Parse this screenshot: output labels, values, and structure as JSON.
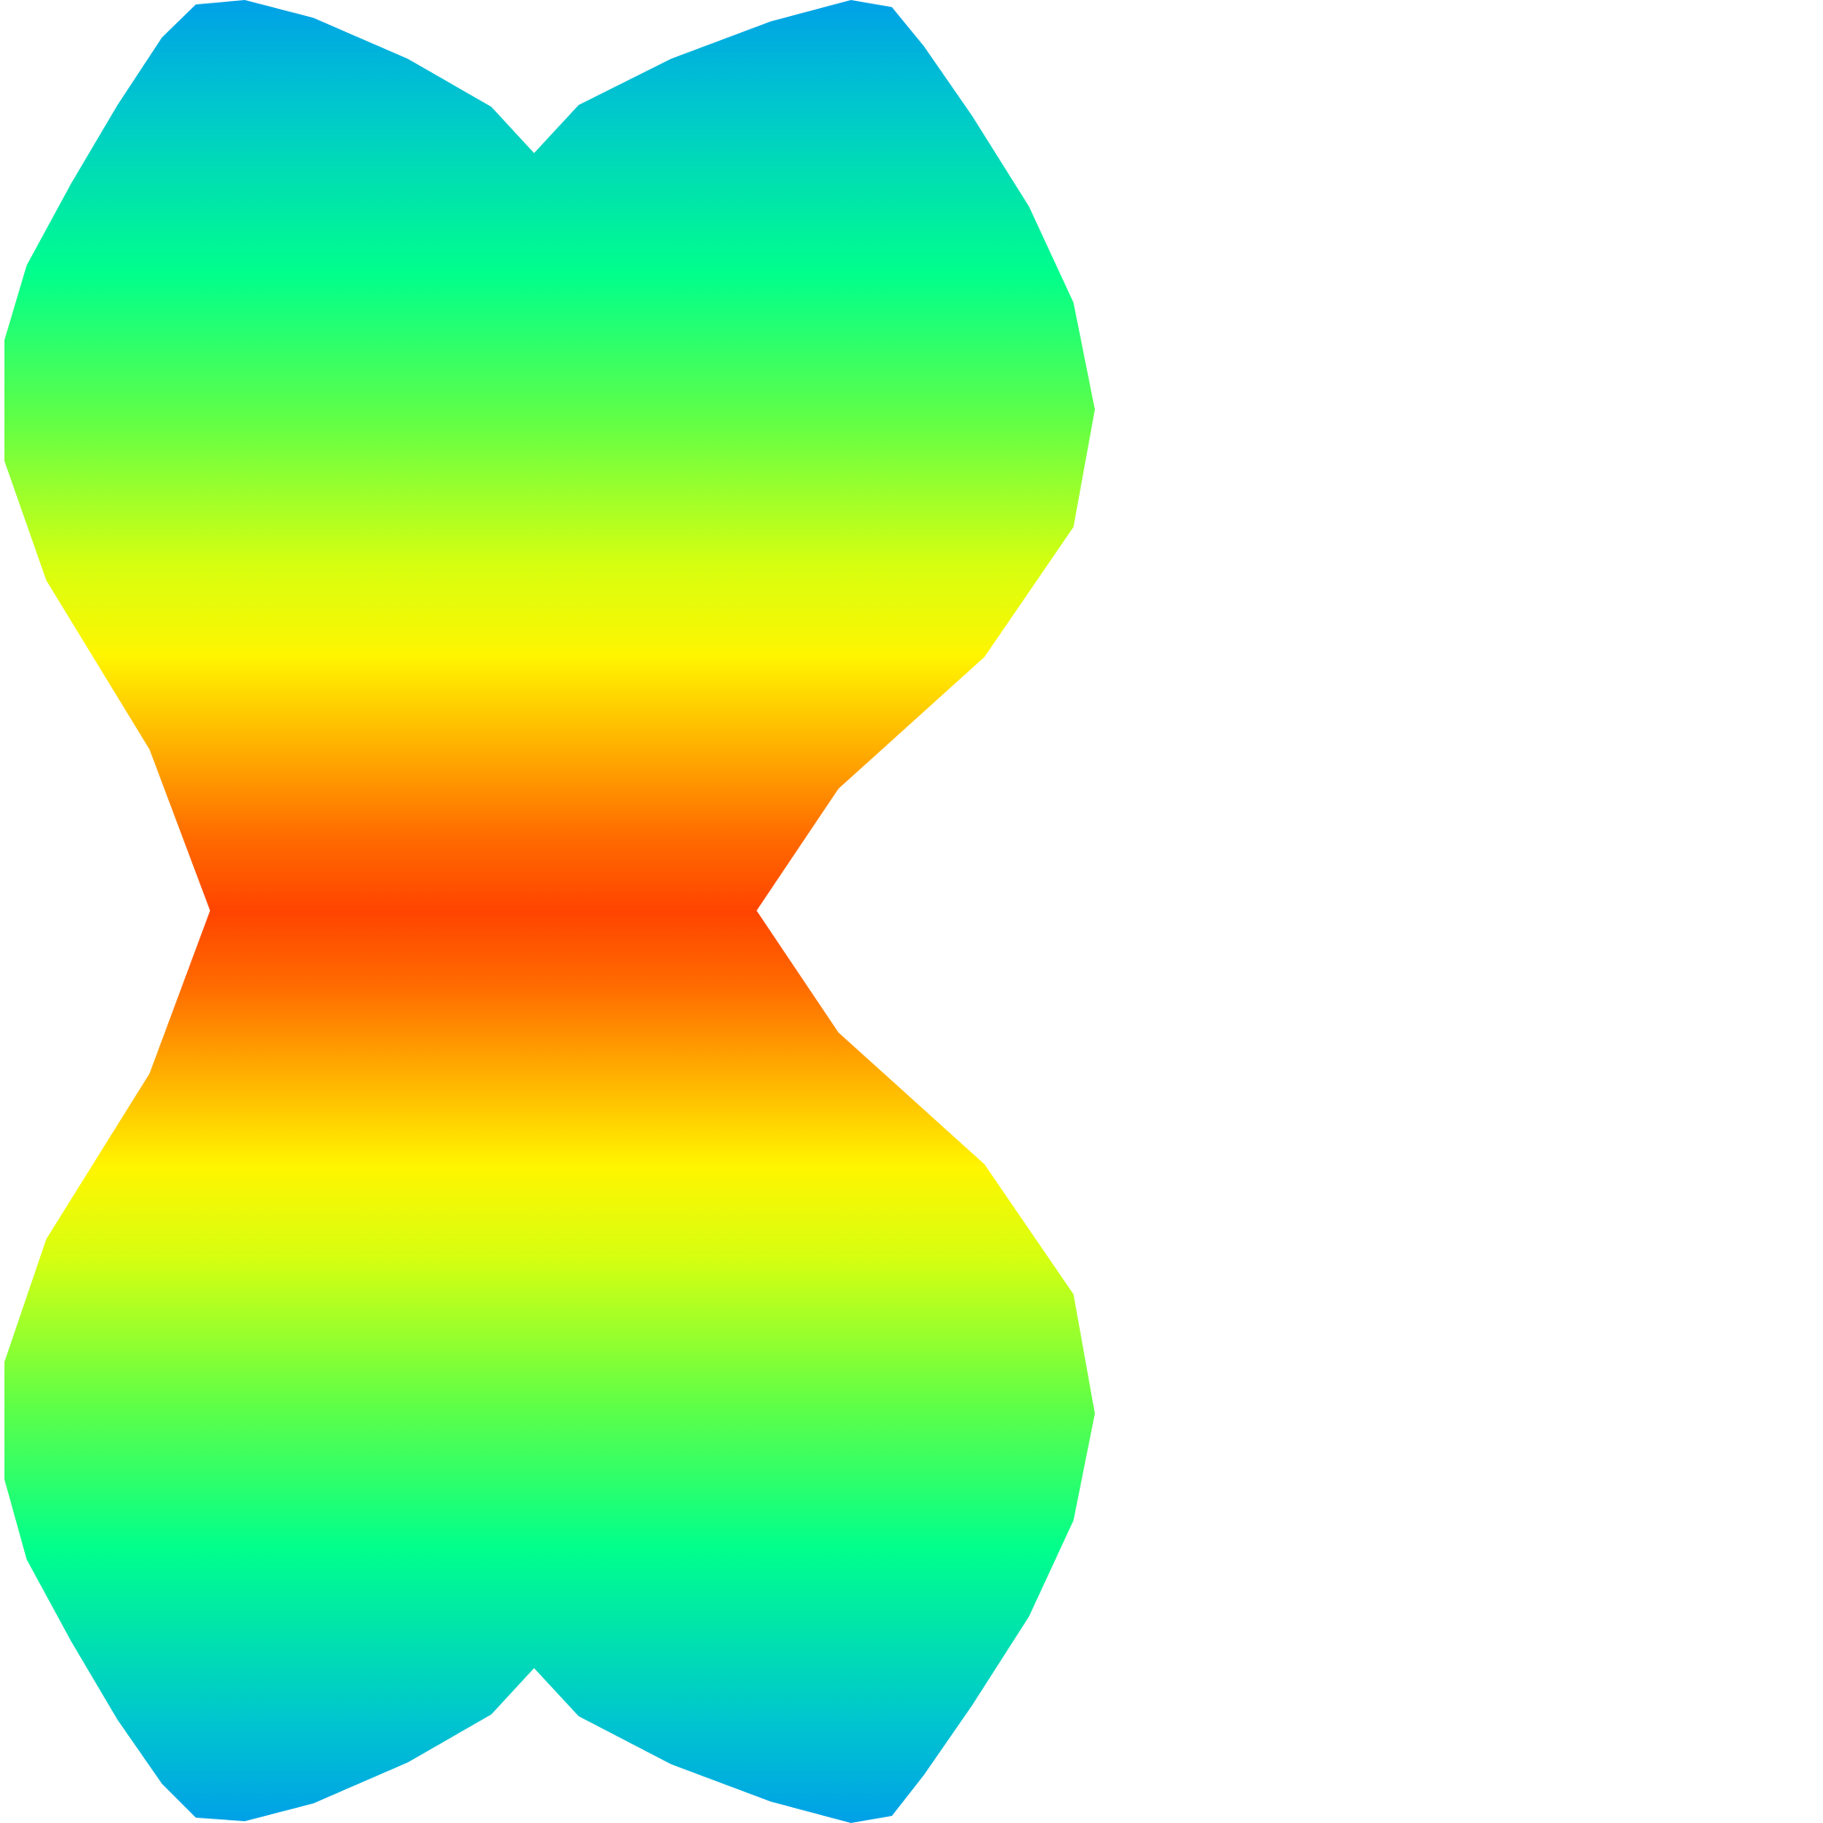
{
  "graphic": {
    "shape": "symmetric-rainbow-gradient-polygon",
    "gradient": {
      "direction": "vertical",
      "stops": [
        {
          "offset": 0.0,
          "color": "#00a0e8"
        },
        {
          "offset": 0.06,
          "color": "#00c8cc"
        },
        {
          "offset": 0.15,
          "color": "#00ff8c"
        },
        {
          "offset": 0.23,
          "color": "#60ff46"
        },
        {
          "offset": 0.31,
          "color": "#d6ff10"
        },
        {
          "offset": 0.36,
          "color": "#fff500"
        },
        {
          "offset": 0.41,
          "color": "#ffb000"
        },
        {
          "offset": 0.46,
          "color": "#ff6a00"
        },
        {
          "offset": 0.5,
          "color": "#ff4400"
        },
        {
          "offset": 0.54,
          "color": "#ff6a00"
        },
        {
          "offset": 0.59,
          "color": "#ffb000"
        },
        {
          "offset": 0.64,
          "color": "#fff500"
        },
        {
          "offset": 0.69,
          "color": "#d6ff10"
        },
        {
          "offset": 0.77,
          "color": "#60ff46"
        },
        {
          "offset": 0.85,
          "color": "#00ff8c"
        },
        {
          "offset": 0.94,
          "color": "#00c8cc"
        },
        {
          "offset": 1.0,
          "color": "#00a0e8"
        }
      ]
    },
    "background_color": "#ffffff"
  }
}
